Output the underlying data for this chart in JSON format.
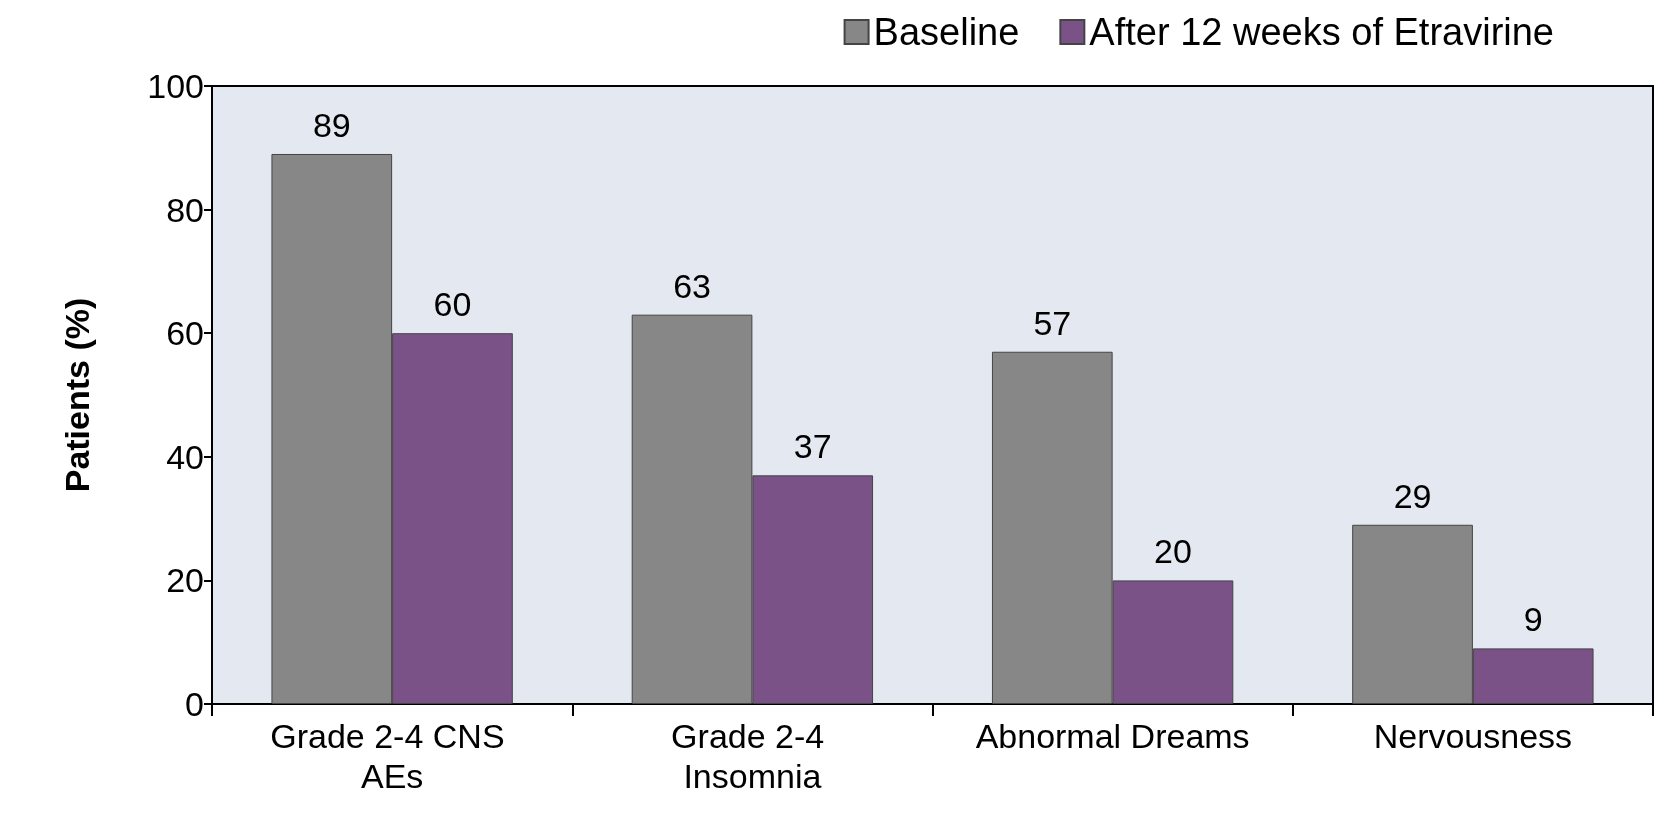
{
  "chart_data": {
    "type": "bar",
    "ylabel": "Patients (%)",
    "categories": [
      "Grade 2-4 CNS AEs",
      "Grade 2-4 Insomnia",
      "Abnormal Dreams",
      "Nervousness"
    ],
    "series": [
      {
        "name": "Baseline",
        "color": "#878787",
        "values": [
          89,
          63,
          57,
          29
        ]
      },
      {
        "name": "After 12 weeks of Etravirine",
        "color": "#7a5288",
        "values": [
          60,
          37,
          20,
          9
        ]
      }
    ],
    "ylim": [
      0,
      100
    ],
    "yticks": [
      0,
      20,
      40,
      60,
      80,
      100
    ],
    "grid": false,
    "legend": "top right",
    "data_labels": true
  }
}
